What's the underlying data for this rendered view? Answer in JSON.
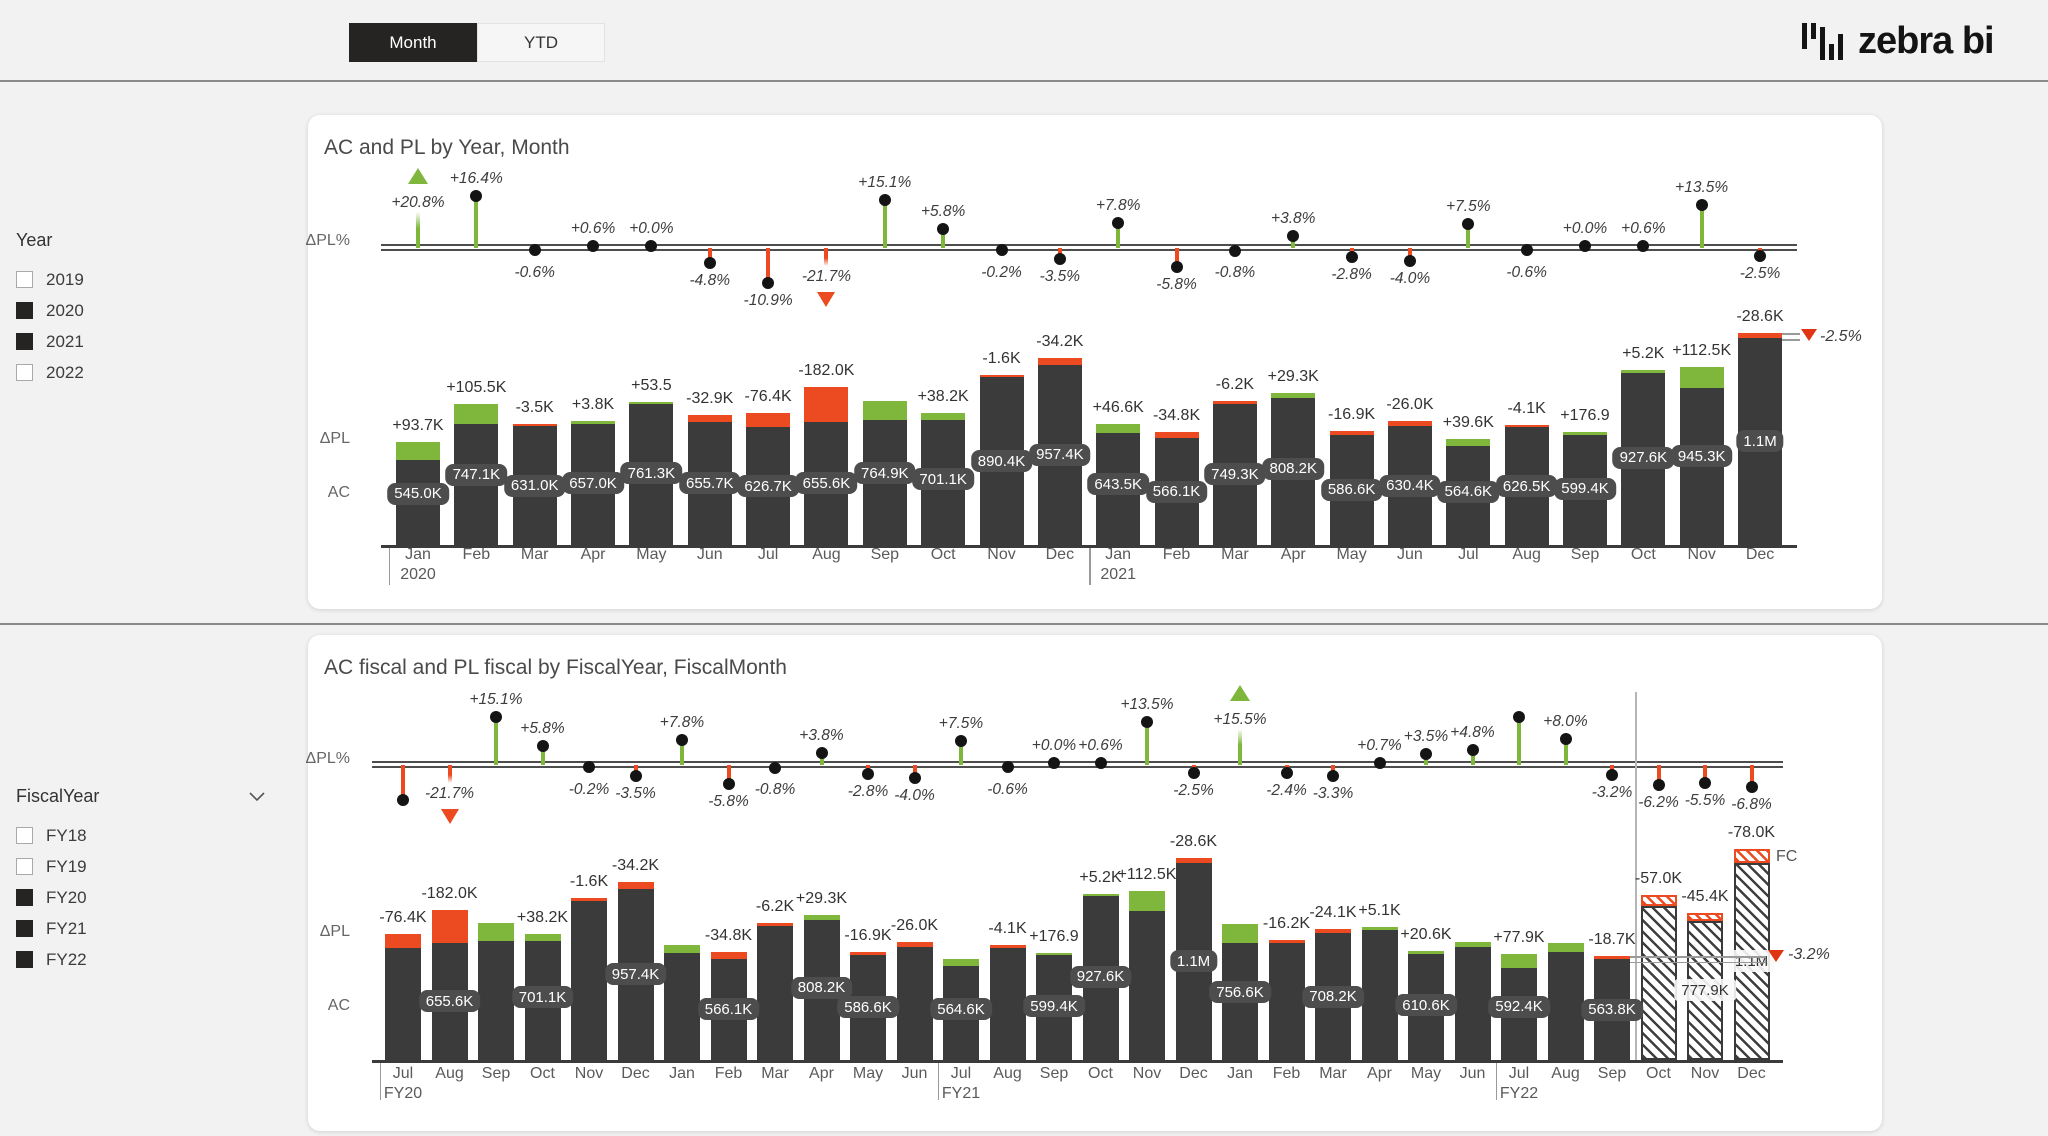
{
  "toolbar": {
    "month_label": "Month",
    "ytd_label": "YTD"
  },
  "logo": {
    "text": "zebra bi"
  },
  "colors": {
    "positive": "#7fb73c",
    "negative": "#ec4a20",
    "bar": "#3b3b3b",
    "selected_toggle": "#252423",
    "pill": "#4d4d4d"
  },
  "filters": {
    "year": {
      "title": "Year",
      "items": [
        {
          "label": "2019",
          "checked": false
        },
        {
          "label": "2020",
          "checked": true
        },
        {
          "label": "2021",
          "checked": true
        },
        {
          "label": "2022",
          "checked": false
        }
      ]
    },
    "fiscal_year": {
      "title": "FiscalYear",
      "items": [
        {
          "label": "FY18",
          "checked": false
        },
        {
          "label": "FY19",
          "checked": false
        },
        {
          "label": "FY20",
          "checked": true
        },
        {
          "label": "FY21",
          "checked": true
        },
        {
          "label": "FY22",
          "checked": true
        }
      ]
    }
  },
  "chart_data": [
    {
      "type": "bar",
      "title": "AC and PL by Year, Month",
      "row_labels": {
        "pct": "ΔPL%",
        "delta": "ΔPL",
        "ac": "AC"
      },
      "x": [
        "Jan",
        "Feb",
        "Mar",
        "Apr",
        "May",
        "Jun",
        "Jul",
        "Aug",
        "Sep",
        "Oct",
        "Nov",
        "Dec",
        "Jan",
        "Feb",
        "Mar",
        "Apr",
        "May",
        "Jun",
        "Jul",
        "Aug",
        "Sep",
        "Oct",
        "Nov",
        "Dec"
      ],
      "year_breaks": [
        {
          "index": 0,
          "label": "2020"
        },
        {
          "index": 12,
          "label": "2021"
        }
      ],
      "series": [
        {
          "name": "AC",
          "values": [
            545000,
            747100,
            631000,
            657000,
            761300,
            655700,
            626700,
            655600,
            764900,
            701100,
            890400,
            957400,
            643500,
            566100,
            749300,
            808200,
            586600,
            630400,
            564600,
            626500,
            599400,
            927600,
            945300,
            1100000
          ],
          "labels": [
            "545.0K",
            "747.1K",
            "631.0K",
            "657.0K",
            "761.3K",
            "655.7K",
            "626.7K",
            "655.6K",
            "764.9K",
            "701.1K",
            "890.4K",
            "957.4K",
            "643.5K",
            "566.1K",
            "749.3K",
            "808.2K",
            "586.6K",
            "630.4K",
            "564.6K",
            "626.5K",
            "599.4K",
            "927.6K",
            "945.3K",
            "1.1M"
          ]
        },
        {
          "name": "ΔPL",
          "values": [
            93700,
            105500,
            -3500,
            3800,
            53.5,
            -32900,
            -76400,
            -182000,
            100300,
            38200,
            -1600,
            -34200,
            46600,
            -34800,
            -6200,
            29300,
            -16900,
            -26000,
            39600,
            -4100,
            176.9,
            5200,
            112500,
            -28600
          ],
          "labels": [
            "+93.7K",
            "+105.5K",
            "-3.5K",
            "+3.8K",
            "+53.5",
            "-32.9K",
            "-76.4K",
            "-182.0K",
            null,
            "+38.2K",
            "-1.6K",
            "-34.2K",
            "+46.6K",
            "-34.8K",
            "-6.2K",
            "+29.3K",
            "-16.9K",
            "-26.0K",
            "+39.6K",
            "-4.1K",
            "+176.9",
            "+5.2K",
            "+112.5K",
            "-28.6K"
          ]
        },
        {
          "name": "ΔPL%",
          "values": [
            20.8,
            16.4,
            -0.6,
            0.6,
            0.0,
            -4.8,
            -10.9,
            -21.7,
            15.1,
            5.8,
            -0.2,
            -3.5,
            7.8,
            -5.8,
            -0.8,
            3.8,
            -2.8,
            -4.0,
            7.5,
            -0.6,
            0.0,
            0.6,
            13.5,
            -2.5
          ],
          "labels": [
            "+20.8%",
            "+16.4%",
            "-0.6%",
            "+0.6%",
            "+0.0%",
            "-4.8%",
            "-10.9%",
            "-21.7%",
            "+15.1%",
            "+5.8%",
            "-0.2%",
            "-3.5%",
            "+7.8%",
            "-5.8%",
            "-0.8%",
            "+3.8%",
            "-2.8%",
            "-4.0%",
            "+7.5%",
            "-0.6%",
            "+0.0%",
            "+0.6%",
            "+13.5%",
            "-2.5%"
          ]
        }
      ],
      "clipped_up": [
        0
      ],
      "clipped_down": [
        7
      ],
      "fc_from": null,
      "fc_label": null,
      "last_marker": "-2.5%"
    },
    {
      "type": "bar",
      "title": "AC fiscal and PL fiscal by FiscalYear, FiscalMonth",
      "row_labels": {
        "pct": "ΔPL%",
        "delta": "ΔPL",
        "ac": "AC"
      },
      "x": [
        "Jul",
        "Aug",
        "Sep",
        "Oct",
        "Nov",
        "Dec",
        "Jan",
        "Feb",
        "Mar",
        "Apr",
        "May",
        "Jun",
        "Jul",
        "Aug",
        "Sep",
        "Oct",
        "Nov",
        "Dec",
        "Jan",
        "Feb",
        "Mar",
        "Apr",
        "May",
        "Jun",
        "Jul",
        "Aug",
        "Sep",
        "Oct",
        "Nov",
        "Dec"
      ],
      "year_breaks": [
        {
          "index": 0,
          "label": "FY20"
        },
        {
          "index": 12,
          "label": "FY21"
        },
        {
          "index": 24,
          "label": "FY22"
        }
      ],
      "series": [
        {
          "name": "AC fiscal",
          "values": [
            626700,
            655600,
            764900,
            701100,
            890400,
            957400,
            643500,
            566100,
            749300,
            808200,
            586600,
            630400,
            564600,
            626500,
            599400,
            927600,
            945300,
            1100000,
            756600,
            655000,
            708200,
            740000,
            610600,
            660000,
            592400,
            653000,
            563800,
            862500,
            777900,
            1100000
          ],
          "labels": [
            null,
            "655.6K",
            null,
            "701.1K",
            null,
            "957.4K",
            null,
            "566.1K",
            null,
            "808.2K",
            "586.6K",
            null,
            "564.6K",
            null,
            "599.4K",
            "927.6K",
            null,
            "1.1M",
            "756.6K",
            null,
            "708.2K",
            null,
            "610.6K",
            null,
            "592.4K",
            null,
            "563.8K",
            null,
            "777.9K",
            "1.1M"
          ]
        },
        {
          "name": "ΔPL fiscal",
          "values": [
            -76400,
            -182000,
            100300,
            38200,
            -1600,
            -34200,
            46600,
            -34800,
            -6200,
            29300,
            -16900,
            -26000,
            39600,
            -4100,
            176.9,
            5200,
            112500,
            -28600,
            101900,
            -16200,
            -24100,
            5100,
            20600,
            30200,
            77900,
            48400,
            -18700,
            -57000,
            -45400,
            -78000
          ],
          "labels": [
            "-76.4K",
            "-182.0K",
            null,
            "+38.2K",
            "-1.6K",
            "-34.2K",
            null,
            "-34.8K",
            "-6.2K",
            "+29.3K",
            "-16.9K",
            "-26.0K",
            null,
            "-4.1K",
            "+176.9",
            "+5.2K",
            "+112.5K",
            "-28.6K",
            null,
            "-16.2K",
            "-24.1K",
            "+5.1K",
            "+20.6K",
            null,
            "+77.9K",
            null,
            "-18.7K",
            "-57.0K",
            "-45.4K",
            "-78.0K"
          ]
        },
        {
          "name": "ΔPL% fiscal",
          "values": [
            -10.9,
            -21.7,
            15.1,
            5.8,
            -0.2,
            -3.5,
            7.8,
            -5.8,
            -0.8,
            3.8,
            -2.8,
            -4.0,
            7.5,
            -0.6,
            0.0,
            0.6,
            13.5,
            -2.5,
            15.5,
            -2.4,
            -3.3,
            0.7,
            3.5,
            4.8,
            15.1,
            8.0,
            -3.2,
            -6.2,
            -5.5,
            -6.8
          ],
          "labels": [
            null,
            "-21.7%",
            "+15.1%",
            "+5.8%",
            "-0.2%",
            "-3.5%",
            "+7.8%",
            "-5.8%",
            "-0.8%",
            "+3.8%",
            "-2.8%",
            "-4.0%",
            "+7.5%",
            "-0.6%",
            "+0.0%",
            "+0.6%",
            "+13.5%",
            "-2.5%",
            "+15.5%",
            "-2.4%",
            "-3.3%",
            "+0.7%",
            "+3.5%",
            "+4.8%",
            null,
            "+8.0%",
            "-3.2%",
            "-6.2%",
            "-5.5%",
            "-6.8%"
          ]
        }
      ],
      "clipped_up": [
        18
      ],
      "clipped_down": [
        1
      ],
      "fc_from": 27,
      "fc_label": "FC",
      "last_marker": "-3.2%"
    }
  ]
}
